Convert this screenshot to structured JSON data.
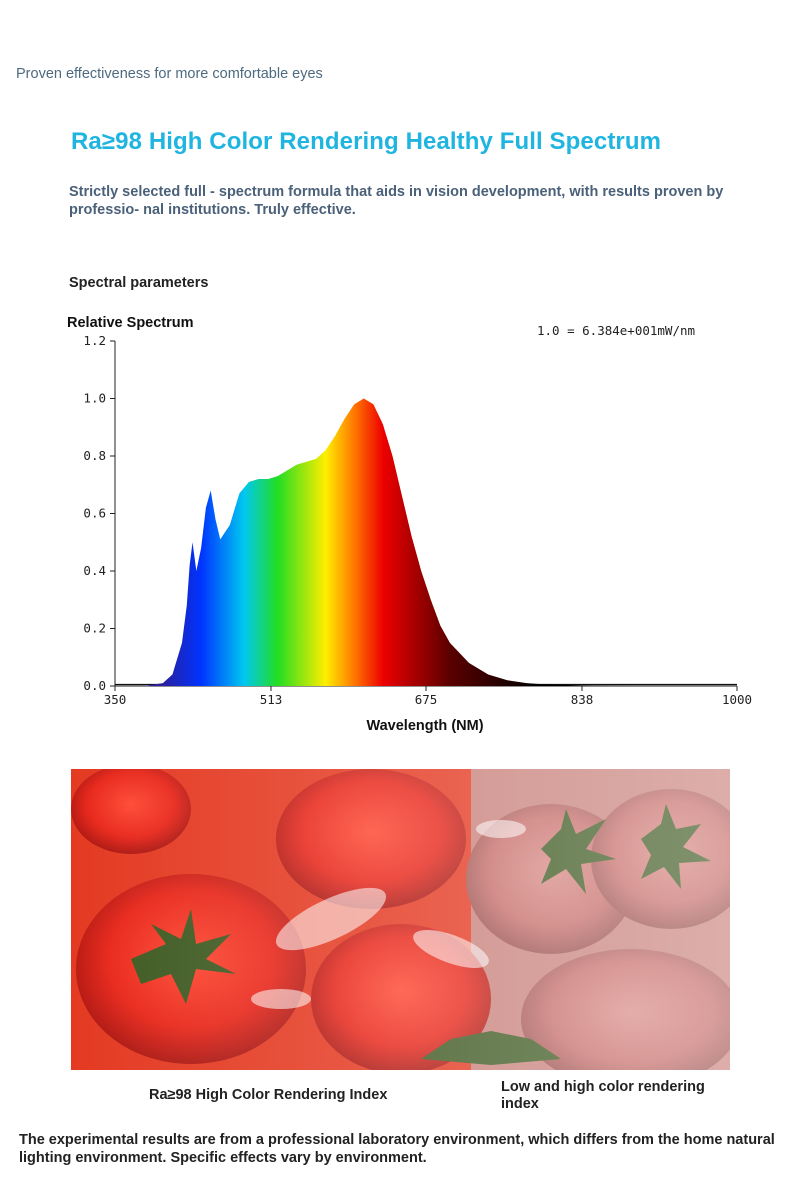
{
  "tagline": "Proven effectiveness for more comfortable eyes",
  "headline": "Ra≥98 High Color Rendering Healthy Full Spectrum",
  "description": "Strictly selected full - spectrum formula that aids in vision development, with results proven by professio- nal institutions. Truly effective.",
  "spectral_section_title": "Spectral parameters",
  "chart_data": {
    "type": "area",
    "title": "",
    "ylabel": "Relative Spectrum",
    "xlabel": "Wavelength (NM)",
    "annotation": "1.0 = 6.384e+001mW/nm",
    "xlim": [
      350,
      1000
    ],
    "ylim": [
      0,
      1.2
    ],
    "x_ticks": [
      350,
      513,
      675,
      838,
      1000
    ],
    "y_ticks": [
      0.0,
      0.2,
      0.4,
      0.6,
      0.8,
      1.0,
      1.2
    ],
    "x_tick_labels": [
      "350",
      "513",
      "675",
      "838",
      "1000"
    ],
    "y_tick_labels": [
      "0.0",
      "0.2",
      "0.4",
      "0.6",
      "0.8",
      "1.0",
      "1.2"
    ],
    "grid": false,
    "x": [
      350,
      380,
      400,
      410,
      420,
      425,
      428,
      431,
      435,
      440,
      445,
      450,
      455,
      460,
      470,
      480,
      490,
      500,
      510,
      520,
      530,
      540,
      550,
      560,
      570,
      580,
      590,
      600,
      610,
      620,
      630,
      640,
      650,
      660,
      670,
      680,
      690,
      700,
      720,
      740,
      760,
      780,
      800,
      840,
      900,
      1000
    ],
    "values": [
      0.0,
      0.0,
      0.01,
      0.04,
      0.15,
      0.28,
      0.42,
      0.5,
      0.4,
      0.48,
      0.62,
      0.68,
      0.58,
      0.51,
      0.56,
      0.67,
      0.71,
      0.72,
      0.72,
      0.73,
      0.75,
      0.77,
      0.78,
      0.79,
      0.82,
      0.87,
      0.93,
      0.98,
      1.0,
      0.98,
      0.91,
      0.8,
      0.66,
      0.52,
      0.4,
      0.3,
      0.21,
      0.15,
      0.08,
      0.04,
      0.02,
      0.01,
      0.005,
      0.002,
      0.0,
      0.0
    ],
    "colors": {
      "violet": "#2a1f9e",
      "blue": "#0033ff",
      "cyan": "#00c8f0",
      "green": "#22dd22",
      "yellow": "#ffee00",
      "orange": "#ff7700",
      "red": "#ee0000",
      "dark_red": "#5a0000",
      "black": "#000000"
    }
  },
  "comparison": {
    "left_caption": "Ra≥98 High Color Rendering Index",
    "right_caption": "Low and high color rendering index"
  },
  "footnote": "The experimental results are from a professional laboratory environment, which differs from the home natural lighting environment. Specific effects vary by environment."
}
